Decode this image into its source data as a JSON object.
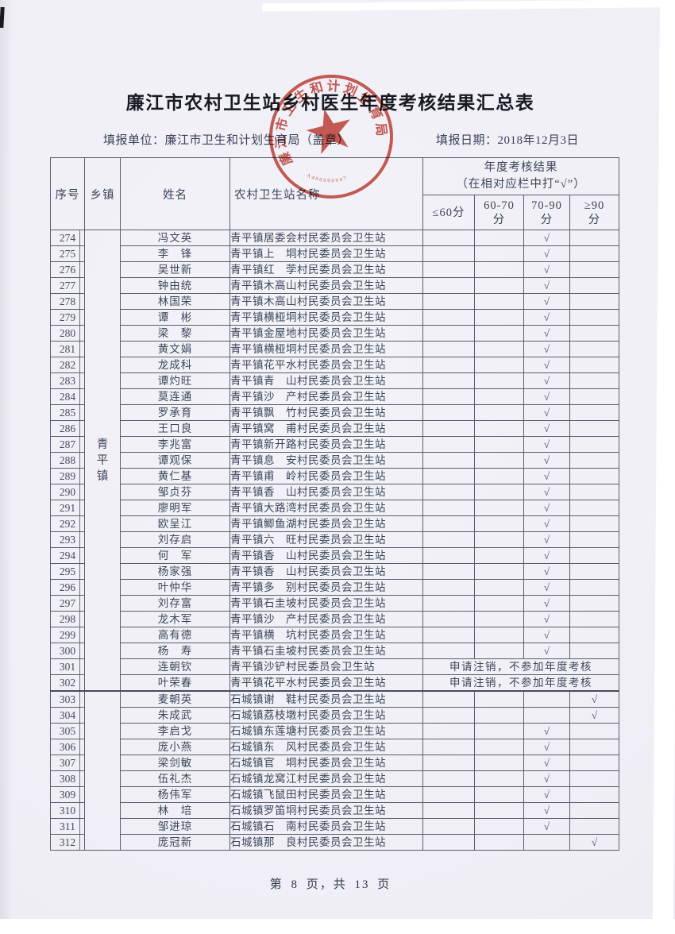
{
  "page": {
    "title": "廉江市农村卫生站乡村医生年度考核结果汇总表",
    "reporting_unit": "填报单位：廉江市卫生和计划生育局（盖章）",
    "reporting_date": "填报日期：2018年12月3日",
    "footer": "第 8 页，共 13 页"
  },
  "stamp": {
    "organization": "廉江市卫生和计划生育局",
    "serial": "A400000047",
    "color": "#c23b31"
  },
  "table": {
    "headers": {
      "seq": "序号",
      "township": "乡镇",
      "name": "姓名",
      "station": "农村卫生站名称",
      "result_line1": "年度考核结果",
      "result_line2": "（在相对应栏中打“√”）"
    },
    "score_headers": [
      {
        "key": "le60",
        "line1": "≤60分",
        "line2": ""
      },
      {
        "key": "60-70",
        "line1": "60-70",
        "line2": "分"
      },
      {
        "key": "70-90",
        "line1": "70-90",
        "line2": "分"
      },
      {
        "key": "ge90",
        "line1": "≥90",
        "line2": "分"
      }
    ],
    "check_mark": "√",
    "note_cancel": "申请注销，不参加年度考核",
    "townships": [
      {
        "label": "青平镇",
        "from": 274,
        "to": 302
      },
      {
        "label": "",
        "from": 303,
        "to": 312
      }
    ],
    "rows": [
      {
        "seq": 274,
        "name": "冯文英",
        "station": "青平镇居委会村民委员会卫生站",
        "score": "70-90"
      },
      {
        "seq": 275,
        "name": "李　锋",
        "station": "青平镇上　垌村民委员会卫生站",
        "score": "70-90"
      },
      {
        "seq": 276,
        "name": "吴世新",
        "station": "青平镇红　茡村民委员会卫生站",
        "score": "70-90"
      },
      {
        "seq": 277,
        "name": "钟由统",
        "station": "青平镇木高山村民委员会卫生站",
        "score": "70-90"
      },
      {
        "seq": 278,
        "name": "林国荣",
        "station": "青平镇木高山村民委员会卫生站",
        "score": "70-90"
      },
      {
        "seq": 279,
        "name": "谭　彬",
        "station": "青平镇横桠垌村民委员会卫生站",
        "score": "70-90"
      },
      {
        "seq": 280,
        "name": "梁　黎",
        "station": "青平镇金屋地村民委员会卫生站",
        "score": "70-90"
      },
      {
        "seq": 281,
        "name": "黄文娟",
        "station": "青平镇横桠垌村民委员会卫生站",
        "score": "70-90"
      },
      {
        "seq": 282,
        "name": "龙成科",
        "station": "青平镇花平水村民委员会卫生站",
        "score": "70-90"
      },
      {
        "seq": 283,
        "name": "谭灼旺",
        "station": "青平镇青　山村民委员会卫生站",
        "score": "70-90"
      },
      {
        "seq": 284,
        "name": "莫连通",
        "station": "青平镇沙　产村民委员会卫生站",
        "score": "70-90"
      },
      {
        "seq": 285,
        "name": "罗承育",
        "station": "青平镇飘　竹村民委员会卫生站",
        "score": "70-90"
      },
      {
        "seq": 286,
        "name": "王口良",
        "station": "青平镇窝　甫村民委员会卫生站",
        "score": "70-90"
      },
      {
        "seq": 287,
        "name": "李兆富",
        "station": "青平镇新开路村民委员会卫生站",
        "score": "70-90"
      },
      {
        "seq": 288,
        "name": "谭观保",
        "station": "青平镇息　安村民委员会卫生站",
        "score": "70-90"
      },
      {
        "seq": 289,
        "name": "黄仁基",
        "station": "青平镇甫　岭村民委员会卫生站",
        "score": "70-90"
      },
      {
        "seq": 290,
        "name": "邹贞芬",
        "station": "青平镇香　山村民委员会卫生站",
        "score": "70-90"
      },
      {
        "seq": 291,
        "name": "廖明军",
        "station": "青平镇大路湾村民委员会卫生站",
        "score": "70-90"
      },
      {
        "seq": 292,
        "name": "欧呈江",
        "station": "青平镇鲫鱼湖村民委员会卫生站",
        "score": "70-90"
      },
      {
        "seq": 293,
        "name": "刘存启",
        "station": "青平镇六　旺村民委员会卫生站",
        "score": "70-90"
      },
      {
        "seq": 294,
        "name": "何　军",
        "station": "青平镇香　山村民委员会卫生站",
        "score": "70-90"
      },
      {
        "seq": 295,
        "name": "杨家强",
        "station": "青平镇香　山村民委员会卫生站",
        "score": "70-90"
      },
      {
        "seq": 296,
        "name": "叶仲华",
        "station": "青平镇多　别村民委员会卫生站",
        "score": "70-90"
      },
      {
        "seq": 297,
        "name": "刘存富",
        "station": "青平镇石圭坡村民委员会卫生站",
        "score": "70-90"
      },
      {
        "seq": 298,
        "name": "龙木军",
        "station": "青平镇沙　产村民委员会卫生站",
        "score": "70-90"
      },
      {
        "seq": 299,
        "name": "高有德",
        "station": "青平镇横　坑村民委员会卫生站",
        "score": "70-90"
      },
      {
        "seq": 300,
        "name": "杨　寿",
        "station": "青平镇石圭坡村民委员会卫生站",
        "score": "70-90"
      },
      {
        "seq": 301,
        "name": "连朝钦",
        "station": "青平镇沙铲村民委员会卫生站",
        "score": null,
        "cancelled": true
      },
      {
        "seq": 302,
        "name": "叶荣春",
        "station": "青平镇花平水村民委员会卫生站",
        "score": null,
        "cancelled": true
      },
      {
        "seq": 303,
        "name": "麦朝英",
        "station": "石城镇谢　鞋村民委员会卫生站",
        "score": "ge90"
      },
      {
        "seq": 304,
        "name": "朱成武",
        "station": "石城镇荔枝墩村民委员会卫生站",
        "score": "ge90"
      },
      {
        "seq": 305,
        "name": "李启戈",
        "station": "石城镇东莲塘村民委员会卫生站",
        "score": "70-90"
      },
      {
        "seq": 306,
        "name": "庞小燕",
        "station": "石城镇东　风村民委员会卫生站",
        "score": "70-90"
      },
      {
        "seq": 307,
        "name": "梁剑敏",
        "station": "石城镇官　垌村民委员会卫生站",
        "score": "70-90"
      },
      {
        "seq": 308,
        "name": "伍礼杰",
        "station": "石城镇龙窝江村民委员会卫生站",
        "score": "70-90"
      },
      {
        "seq": 309,
        "name": "杨伟军",
        "station": "石城镇飞鼠田村民委员会卫生站",
        "score": "70-90"
      },
      {
        "seq": 310,
        "name": "林　培",
        "station": "石城镇罗笛垌村民委员会卫生站",
        "score": "70-90"
      },
      {
        "seq": 311,
        "name": "邹进琼",
        "station": "石城镇石　南村民委员会卫生站",
        "score": "70-90"
      },
      {
        "seq": 312,
        "name": "庞冠新",
        "station": "石城镇那　良村民委员会卫生站",
        "score": "ge90"
      }
    ]
  }
}
